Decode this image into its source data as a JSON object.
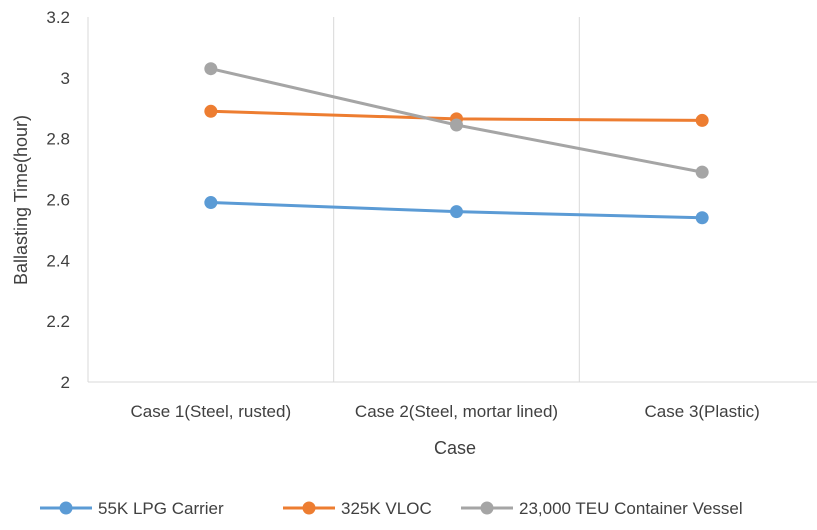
{
  "chart_data": {
    "type": "line",
    "title": "",
    "xlabel": "Case",
    "ylabel": "Ballasting Time(hour)",
    "categories": [
      "Case 1(Steel, rusted)",
      "Case 2(Steel, mortar lined)",
      "Case 3(Plastic)"
    ],
    "ylim": [
      2,
      3.2
    ],
    "yticks": [
      "2",
      "2.2",
      "2.4",
      "2.6",
      "2.8",
      "3",
      "3.2"
    ],
    "grid": true,
    "legend_position": "bottom",
    "series": [
      {
        "name": "55K LPG Carrier",
        "color": "#5b9bd5",
        "values": [
          2.59,
          2.56,
          2.54
        ]
      },
      {
        "name": "325K VLOC",
        "color": "#ed7d31",
        "values": [
          2.89,
          2.865,
          2.86
        ]
      },
      {
        "name": "23,000 TEU Container Vessel",
        "color": "#a5a5a5",
        "values": [
          3.03,
          2.845,
          2.69
        ]
      }
    ]
  }
}
